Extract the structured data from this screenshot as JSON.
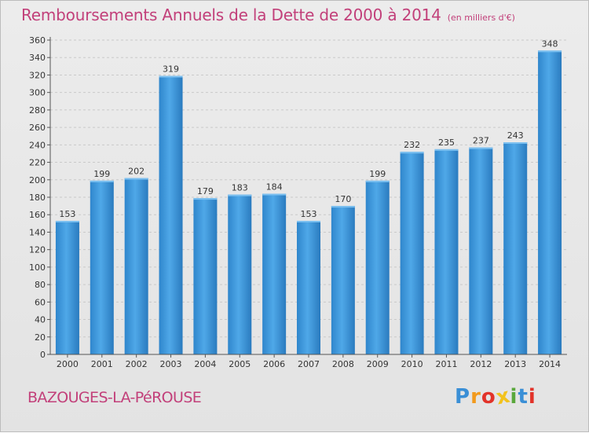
{
  "header": {
    "title": "Remboursements Annuels de la Dette de 2000 à 2014",
    "unit": "(en milliers d'€)"
  },
  "footer": {
    "commune": "BAZOUGES-LA-PéROUSE",
    "logo_letters": [
      "P",
      "r",
      "o",
      "x",
      "i",
      "t",
      "i"
    ],
    "logo_colors": [
      "#3a8fd6",
      "#f29a1d",
      "#e2332a",
      "#f2c21d",
      "#5aa83c",
      "#3a8fd6",
      "#e2332a"
    ]
  },
  "chart_data": {
    "type": "bar",
    "categories": [
      "2000",
      "2001",
      "2002",
      "2003",
      "2004",
      "2005",
      "2006",
      "2007",
      "2008",
      "2009",
      "2010",
      "2011",
      "2012",
      "2013",
      "2014"
    ],
    "values": [
      153,
      199,
      202,
      319,
      179,
      183,
      184,
      153,
      170,
      199,
      232,
      235,
      237,
      243,
      348
    ],
    "ylim": [
      0,
      360
    ],
    "yticks": [
      0,
      20,
      40,
      60,
      80,
      100,
      120,
      140,
      160,
      180,
      200,
      220,
      240,
      260,
      280,
      300,
      320,
      340,
      360
    ],
    "grid": true,
    "bar_color": "#3d95d8",
    "title_color": "#c2407a"
  }
}
